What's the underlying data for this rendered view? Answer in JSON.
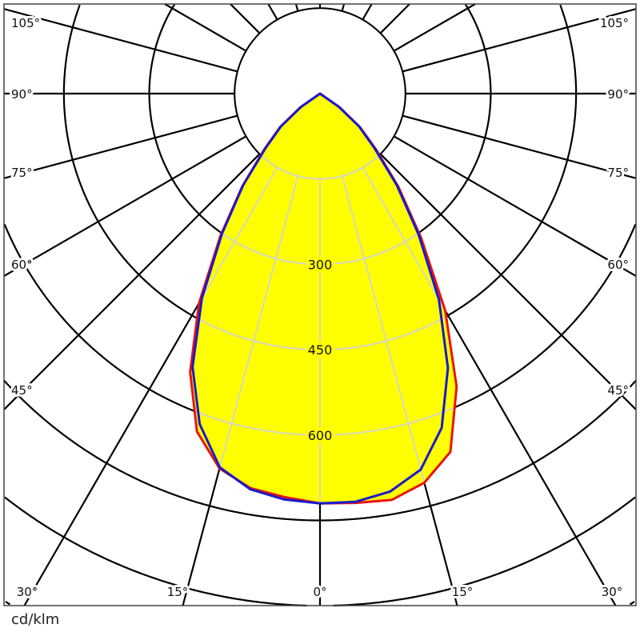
{
  "chart_data": {
    "type": "polar",
    "unit_label": "cd/klm",
    "angle_direction": "0° pointing down, symmetric left/right",
    "radial_grid_step": 150,
    "radial_grid_max": 1050,
    "radial_tick_labels": [
      "300",
      "450",
      "600"
    ],
    "radial_tick_values": [
      300,
      450,
      600
    ],
    "angle_labels": {
      "left": [
        "105°",
        "90°",
        "75°",
        "60°",
        "45°"
      ],
      "bottom": [
        "30°",
        "15°",
        "0°",
        "15°",
        "30°"
      ],
      "right": [
        "105°",
        "90°",
        "75°",
        "60°",
        "45°"
      ]
    },
    "fill_color": "#ffff00",
    "angles": [
      0,
      5,
      10,
      15,
      20,
      25,
      30,
      35,
      40,
      45,
      50,
      55,
      60,
      90
    ],
    "series": [
      {
        "color": "#e8140f",
        "left": [
          720,
          712,
          704,
          682,
          632,
          540,
          425,
          305,
          212,
          138,
          92,
          42,
          0,
          0
        ],
        "right": [
          720,
          722,
          725,
          708,
          670,
          568,
          440,
          310,
          215,
          140,
          92,
          42,
          0,
          0
        ]
      },
      {
        "color": "#1a1acc",
        "left": [
          720,
          716,
          706,
          680,
          618,
          530,
          415,
          300,
          210,
          135,
          90,
          40,
          0,
          0
        ],
        "right": [
          720,
          720,
          710,
          684,
          625,
          532,
          418,
          302,
          210,
          135,
          90,
          40,
          0,
          0
        ]
      }
    ]
  }
}
